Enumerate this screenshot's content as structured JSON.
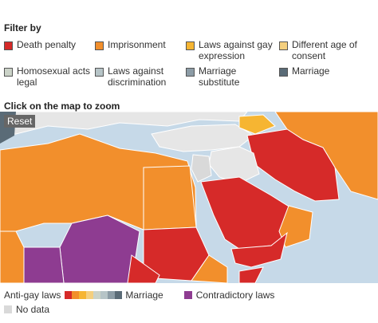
{
  "filter": {
    "title": "Filter by",
    "options": [
      {
        "label": "Death penalty",
        "color": "#d62a29"
      },
      {
        "label": "Imprisonment",
        "color": "#f28f2c"
      },
      {
        "label": "Laws against gay expression",
        "color": "#f6b532"
      },
      {
        "label": "Different age of consent",
        "color": "#f4cf7e"
      },
      {
        "label": "Homosexual acts legal",
        "color": "#cbd3c8"
      },
      {
        "label": "Laws against discrimination",
        "color": "#b6c4c7"
      },
      {
        "label": "Marriage substitute",
        "color": "#8c9ca6"
      },
      {
        "label": "Marriage",
        "color": "#5a6b77"
      }
    ]
  },
  "map": {
    "instruction": "Click on the map to zoom",
    "reset": "Reset"
  },
  "legend": {
    "anti_gay": "Anti-gay laws",
    "marriage": "Marriage",
    "contradictory": {
      "label": "Contradictory laws",
      "color": "#8e3c91"
    },
    "no_data": {
      "label": "No data",
      "color": "#d9d9d9"
    }
  }
}
